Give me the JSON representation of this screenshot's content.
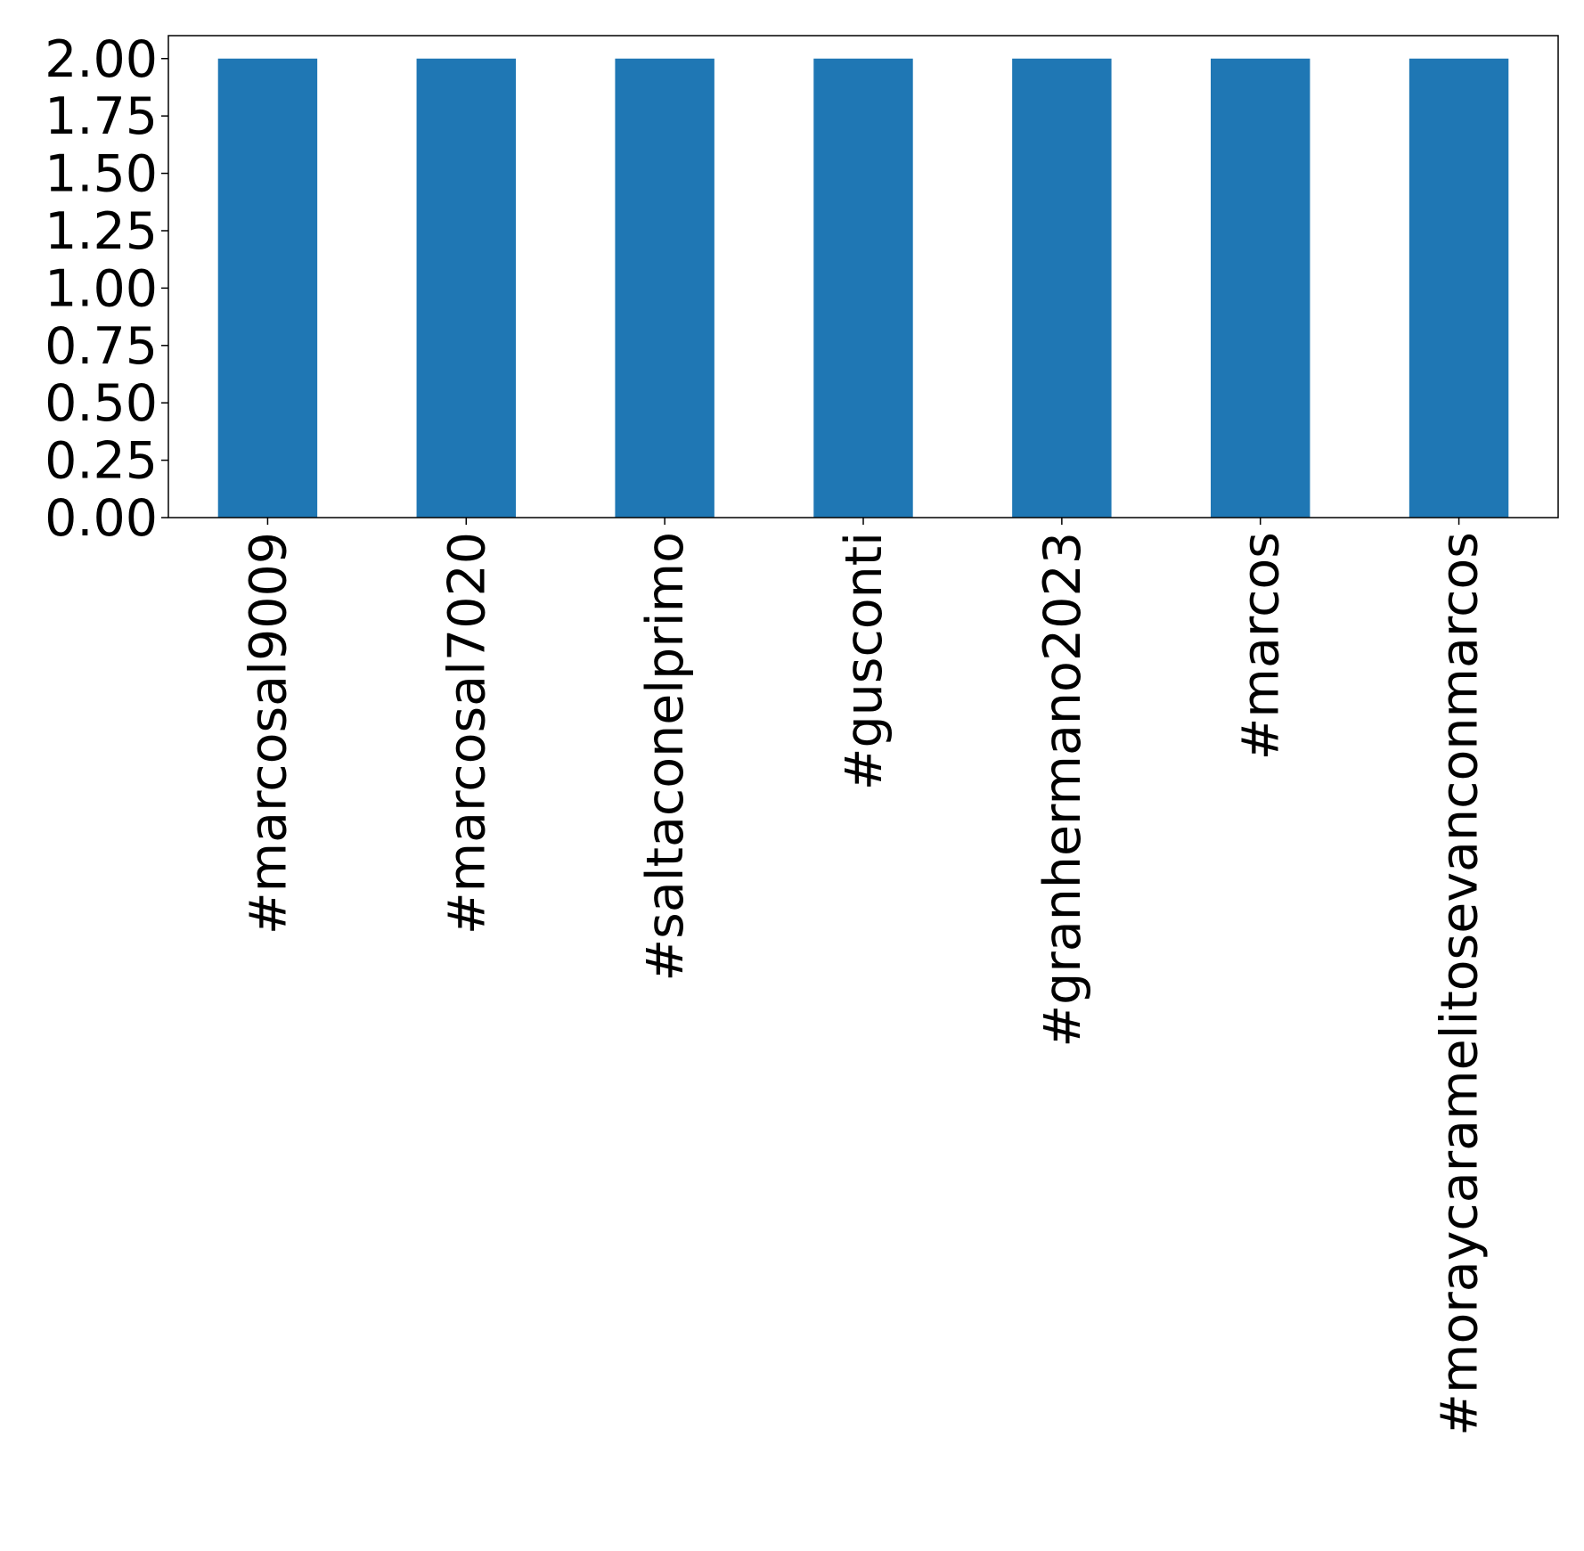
{
  "chart_data": {
    "type": "bar",
    "categories": [
      "#marcosal9009",
      "#marcosal7020",
      "#saltaconelprimo",
      "#gusconti",
      "#granhermano2023",
      "#marcos",
      "#moraycaramelitosevanconmarcos"
    ],
    "values": [
      2,
      2,
      2,
      2,
      2,
      2,
      2
    ],
    "color": "#1f77b4",
    "ylim": [
      0,
      2.1
    ],
    "yticks": [
      {
        "value": 0,
        "label": "0.00"
      },
      {
        "value": 0.25,
        "label": "0.25"
      },
      {
        "value": 0.5,
        "label": "0.50"
      },
      {
        "value": 0.75,
        "label": "0.75"
      },
      {
        "value": 1,
        "label": "1.00"
      },
      {
        "value": 1.25,
        "label": "1.25"
      },
      {
        "value": 1.5,
        "label": "1.50"
      },
      {
        "value": 1.75,
        "label": "1.75"
      },
      {
        "value": 2,
        "label": "2.00"
      }
    ],
    "grid": false
  }
}
